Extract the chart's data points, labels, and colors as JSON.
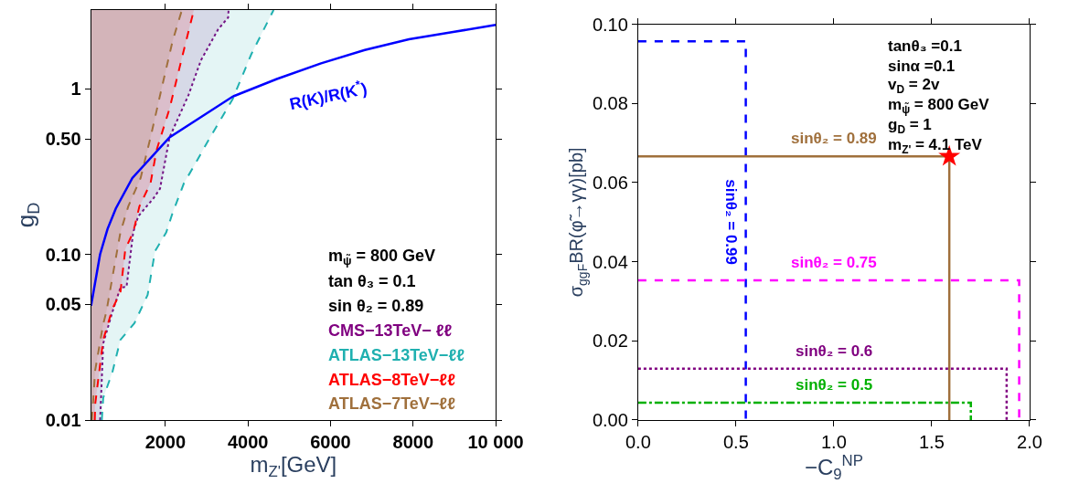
{
  "chart_data": [
    {
      "type": "area",
      "xlabel": "m$_{Z'}$[GeV]",
      "ylabel": "g$_{D}$",
      "log": "y",
      "legend": false,
      "xlim": [
        200,
        10000
      ],
      "xticks": [
        2000,
        4000,
        6000,
        8000,
        {
          "value": 10000,
          "label": "10 000"
        }
      ],
      "ylim": [
        0.01,
        3
      ],
      "yticks": [
        0.01,
        0.05,
        {
          "value": 0.1,
          "label": "0.10"
        },
        {
          "value": 0.5,
          "label": "0.50"
        },
        1
      ],
      "annotations": [
        "m$_{ψ̃}$ = 800 GeV",
        "tan θ₃ = 0.1",
        "sin θ₂ = 0.89"
      ],
      "series": [
        {
          "name": "CMS−13TeV− ℓℓ",
          "color": "#800080",
          "line_style": "dotted",
          "x": [
            420,
            494,
            717,
            910,
            1060,
            1220,
            1340,
            1720,
            1870,
            2100,
            2560,
            2860,
            3280,
            3520,
            3530
          ],
          "values": [
            0.01,
            0.029,
            0.045,
            0.063,
            0.064,
            0.136,
            0.17,
            0.22,
            0.25,
            0.51,
            0.92,
            1.49,
            2.3,
            2.7,
            3.0
          ]
        },
        {
          "name": "ATLAS−13TeV−ℓℓ",
          "color": "#20b0b0",
          "line_style": "dashed",
          "x": [
            460,
            494,
            717,
            910,
            1250,
            1570,
            1750,
            2020,
            2170,
            2450,
            2700,
            3000,
            3630,
            4080,
            4620
          ],
          "values": [
            0.01,
            0.0136,
            0.0195,
            0.0305,
            0.0385,
            0.057,
            0.105,
            0.136,
            0.177,
            0.27,
            0.345,
            0.47,
            0.87,
            1.62,
            3.0
          ]
        },
        {
          "name": "ATLAS−8TeV−ℓℓ",
          "color": "#ff0000",
          "line_style": "dashed",
          "x": [
            290,
            300,
            494,
            717,
            910,
            1030,
            1220,
            1370,
            1640,
            1790,
            2100,
            2400,
            2690
          ],
          "values": [
            0.01,
            0.0125,
            0.0305,
            0.047,
            0.059,
            0.108,
            0.136,
            0.195,
            0.27,
            0.43,
            0.76,
            1.54,
            3.0
          ]
        },
        {
          "name": "ATLAS−7TeV−ℓℓ",
          "color": "#a0703c",
          "line_style": "dashed",
          "x": [
            220,
            300,
            494,
            570,
            717,
            910,
            1100,
            1400,
            1640,
            1940,
            2170,
            2400
          ],
          "values": [
            0.01,
            0.02,
            0.038,
            0.045,
            0.073,
            0.136,
            0.195,
            0.29,
            0.51,
            1.09,
            1.93,
            3.0
          ]
        },
        {
          "name": "R(K)/R(K$^{*}$)",
          "type": "line",
          "color": "#0000ff",
          "line_style": "solid",
          "x": [
            200,
            417,
            600,
            800,
            1200,
            2100,
            3630,
            4700,
            5770,
            6830,
            7900,
            8970,
            10000
          ],
          "values": [
            0.049,
            0.1,
            0.143,
            0.19,
            0.29,
            0.51,
            0.9,
            1.15,
            1.43,
            1.72,
            2.0,
            2.21,
            2.44
          ]
        }
      ]
    },
    {
      "type": "line",
      "xlabel": "−C$_{9}$$^{NP}$",
      "ylabel": "σ$_{ggF}$BR(φ̃→γγ)[pb]",
      "legend": false,
      "xlim": [
        0,
        2
      ],
      "xticks": [
        {
          "value": 0,
          "label": "0.0"
        },
        0.5,
        {
          "value": 1,
          "label": "1.0"
        },
        1.5,
        {
          "value": 2,
          "label": "2.0"
        }
      ],
      "ylim": [
        0,
        0.1
      ],
      "yticks": [
        {
          "value": 0,
          "label": "0.00"
        },
        {
          "value": 0.02,
          "label": "0.02"
        },
        {
          "value": 0.04,
          "label": "0.04"
        },
        {
          "value": 0.06,
          "label": "0.06"
        },
        {
          "value": 0.08,
          "label": "0.08"
        },
        {
          "value": 0.1,
          "label": "0.10"
        }
      ],
      "annotations": [
        "tanθ₃ =0.1",
        "sinα =0.1",
        "v$_{D}$ = 2v",
        "m$_{ψ̃}$ = 800 GeV",
        "g$_{D}$ = 1",
        "m$_{Z'}$ = 4.1 TeV"
      ],
      "series": [
        {
          "name": "sinθ₂ = 0.99",
          "color": "#0000ff",
          "line_style": "dashed",
          "x": [
            0,
            0.55,
            0.55
          ],
          "values": [
            0.0957,
            0.0957,
            0
          ]
        },
        {
          "name": "sinθ₂ = 0.89",
          "color": "#a0703c",
          "line_style": "solid",
          "x": [
            0,
            1.59,
            1.59
          ],
          "values": [
            0.0666,
            0.0666,
            0
          ]
        },
        {
          "name": "sinθ₂ = 0.75",
          "color": "#ff00ff",
          "line_style": "dashed",
          "x": [
            0,
            1.947,
            1.947
          ],
          "values": [
            0.0353,
            0.0353,
            0
          ]
        },
        {
          "name": "sinθ₂ = 0.6",
          "color": "#800080",
          "line_style": "dotted",
          "x": [
            0,
            1.883,
            1.883
          ],
          "values": [
            0.013,
            0.013,
            0
          ]
        },
        {
          "name": "sinθ₂ = 0.5",
          "color": "#00b000",
          "line_style": "dashdot",
          "x": [
            0,
            1.7,
            1.7
          ],
          "values": [
            0.0044,
            0.0044,
            0
          ]
        },
        {
          "type": "scatter",
          "marker": "star",
          "color": "#ff0000",
          "x": [
            1.59
          ],
          "values": [
            0.0666
          ]
        }
      ]
    }
  ]
}
